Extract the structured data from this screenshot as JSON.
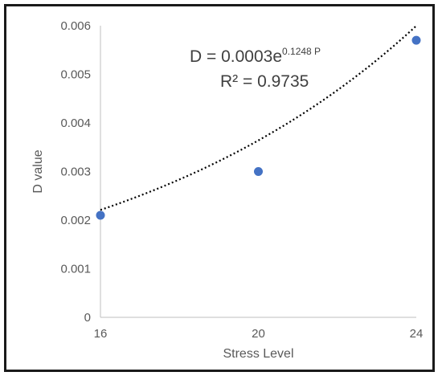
{
  "chart_data": {
    "type": "scatter",
    "title": "",
    "xlabel": "Stress Level",
    "ylabel": "D value",
    "xlim": [
      16,
      24
    ],
    "ylim": [
      0,
      0.006
    ],
    "x_ticks": [
      "16",
      "20",
      "24"
    ],
    "y_ticks": [
      "0",
      "0.001",
      "0.002",
      "0.003",
      "0.004",
      "0.005",
      "0.006"
    ],
    "grid": false,
    "legend": "none",
    "marker_color": "#4472C4",
    "trendline_color": "#000000",
    "series": [
      {
        "x": [
          16,
          20,
          24
        ],
        "y": [
          0.0021,
          0.003,
          0.0057
        ]
      }
    ],
    "trendline": {
      "type": "exponential",
      "a": 0.0003,
      "b": 0.1248,
      "equation_prefix": "D = 0.0003e",
      "equation_exponent": "0.1248 P",
      "r_squared_label": "R² = 0.9735"
    }
  }
}
